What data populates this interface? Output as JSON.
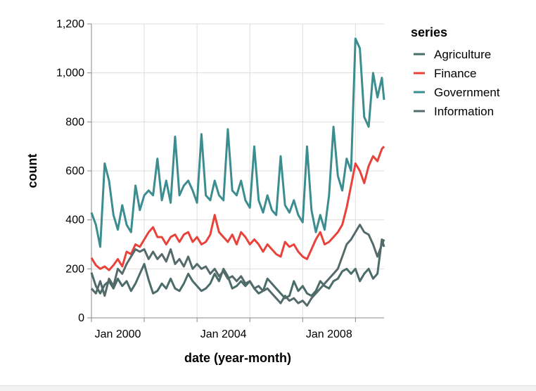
{
  "chart_data": {
    "type": "line",
    "title": "",
    "xlabel": "date (year-month)",
    "ylabel": "count",
    "xlim": [
      "1999-01",
      "2010-02"
    ],
    "ylim": [
      0,
      1200
    ],
    "x_ticks": [
      "Jan 2000",
      "Jan 2004",
      "Jan 2008"
    ],
    "y_ticks": [
      "0",
      "200",
      "400",
      "600",
      "800",
      "1,000",
      "1,200"
    ],
    "grid": true,
    "legend": {
      "title": "series",
      "position": "right"
    },
    "series": [
      {
        "name": "Agriculture",
        "color": "#4a6d6a",
        "points": [
          [
            "1999-01",
            185
          ],
          [
            "1999-03",
            130
          ],
          [
            "1999-05",
            100
          ],
          [
            "1999-07",
            135
          ],
          [
            "1999-09",
            150
          ],
          [
            "1999-11",
            120
          ],
          [
            "2000-01",
            160
          ],
          [
            "2000-03",
            130
          ],
          [
            "2000-05",
            150
          ],
          [
            "2000-07",
            110
          ],
          [
            "2000-09",
            140
          ],
          [
            "2000-11",
            180
          ],
          [
            "2001-01",
            220
          ],
          [
            "2001-03",
            155
          ],
          [
            "2001-05",
            100
          ],
          [
            "2001-07",
            110
          ],
          [
            "2001-09",
            140
          ],
          [
            "2001-11",
            120
          ],
          [
            "2002-01",
            160
          ],
          [
            "2002-03",
            120
          ],
          [
            "2002-05",
            110
          ],
          [
            "2002-07",
            140
          ],
          [
            "2002-09",
            180
          ],
          [
            "2002-11",
            150
          ],
          [
            "2003-01",
            130
          ],
          [
            "2003-03",
            110
          ],
          [
            "2003-05",
            120
          ],
          [
            "2003-07",
            140
          ],
          [
            "2003-09",
            180
          ],
          [
            "2003-11",
            150
          ],
          [
            "2004-01",
            200
          ],
          [
            "2004-03",
            170
          ],
          [
            "2004-05",
            120
          ],
          [
            "2004-07",
            130
          ],
          [
            "2004-09",
            150
          ],
          [
            "2004-11",
            130
          ],
          [
            "2005-01",
            150
          ],
          [
            "2005-03",
            120
          ],
          [
            "2005-05",
            100
          ],
          [
            "2005-07",
            110
          ],
          [
            "2005-09",
            160
          ],
          [
            "2005-11",
            140
          ],
          [
            "2006-01",
            120
          ],
          [
            "2006-03",
            100
          ],
          [
            "2006-05",
            80
          ],
          [
            "2006-07",
            90
          ],
          [
            "2006-09",
            150
          ],
          [
            "2006-11",
            110
          ],
          [
            "2007-01",
            130
          ],
          [
            "2007-03",
            100
          ],
          [
            "2007-05",
            90
          ],
          [
            "2007-07",
            110
          ],
          [
            "2007-09",
            150
          ],
          [
            "2007-11",
            130
          ],
          [
            "2008-01",
            120
          ],
          [
            "2008-03",
            150
          ],
          [
            "2008-05",
            160
          ],
          [
            "2008-07",
            190
          ],
          [
            "2008-09",
            200
          ],
          [
            "2008-11",
            180
          ],
          [
            "2009-01",
            200
          ],
          [
            "2009-03",
            150
          ],
          [
            "2009-05",
            180
          ],
          [
            "2009-07",
            200
          ],
          [
            "2009-09",
            160
          ],
          [
            "2009-11",
            180
          ],
          [
            "2010-01",
            320
          ],
          [
            "2010-02",
            290
          ]
        ]
      },
      {
        "name": "Finance",
        "color": "#e8423a",
        "points": [
          [
            "1999-01",
            245
          ],
          [
            "1999-03",
            215
          ],
          [
            "1999-05",
            200
          ],
          [
            "1999-07",
            210
          ],
          [
            "1999-09",
            195
          ],
          [
            "1999-11",
            215
          ],
          [
            "2000-01",
            240
          ],
          [
            "2000-03",
            210
          ],
          [
            "2000-05",
            270
          ],
          [
            "2000-07",
            260
          ],
          [
            "2000-09",
            300
          ],
          [
            "2000-11",
            290
          ],
          [
            "2001-01",
            320
          ],
          [
            "2001-03",
            350
          ],
          [
            "2001-05",
            370
          ],
          [
            "2001-07",
            330
          ],
          [
            "2001-09",
            330
          ],
          [
            "2001-11",
            300
          ],
          [
            "2002-01",
            330
          ],
          [
            "2002-03",
            340
          ],
          [
            "2002-05",
            310
          ],
          [
            "2002-07",
            340
          ],
          [
            "2002-09",
            350
          ],
          [
            "2002-11",
            310
          ],
          [
            "2003-01",
            330
          ],
          [
            "2003-03",
            300
          ],
          [
            "2003-05",
            310
          ],
          [
            "2003-07",
            340
          ],
          [
            "2003-09",
            420
          ],
          [
            "2003-11",
            350
          ],
          [
            "2004-01",
            330
          ],
          [
            "2004-03",
            310
          ],
          [
            "2004-05",
            340
          ],
          [
            "2004-07",
            300
          ],
          [
            "2004-09",
            350
          ],
          [
            "2004-11",
            330
          ],
          [
            "2005-01",
            300
          ],
          [
            "2005-03",
            320
          ],
          [
            "2005-05",
            300
          ],
          [
            "2005-07",
            270
          ],
          [
            "2005-09",
            300
          ],
          [
            "2005-11",
            280
          ],
          [
            "2006-01",
            260
          ],
          [
            "2006-03",
            250
          ],
          [
            "2006-05",
            310
          ],
          [
            "2006-07",
            290
          ],
          [
            "2006-09",
            300
          ],
          [
            "2006-11",
            270
          ],
          [
            "2007-01",
            250
          ],
          [
            "2007-03",
            240
          ],
          [
            "2007-05",
            280
          ],
          [
            "2007-07",
            320
          ],
          [
            "2007-09",
            350
          ],
          [
            "2007-11",
            300
          ],
          [
            "2008-01",
            310
          ],
          [
            "2008-03",
            330
          ],
          [
            "2008-05",
            350
          ],
          [
            "2008-07",
            380
          ],
          [
            "2008-09",
            450
          ],
          [
            "2008-11",
            540
          ],
          [
            "2009-01",
            630
          ],
          [
            "2009-03",
            600
          ],
          [
            "2009-05",
            550
          ],
          [
            "2009-07",
            620
          ],
          [
            "2009-09",
            660
          ],
          [
            "2009-11",
            640
          ],
          [
            "2010-01",
            690
          ],
          [
            "2010-02",
            700
          ]
        ]
      },
      {
        "name": "Government",
        "color": "#3c8d8f",
        "points": [
          [
            "1999-01",
            430
          ],
          [
            "1999-03",
            380
          ],
          [
            "1999-05",
            290
          ],
          [
            "1999-07",
            630
          ],
          [
            "1999-09",
            560
          ],
          [
            "1999-11",
            420
          ],
          [
            "2000-01",
            360
          ],
          [
            "2000-03",
            460
          ],
          [
            "2000-05",
            380
          ],
          [
            "2000-07",
            350
          ],
          [
            "2000-09",
            540
          ],
          [
            "2000-11",
            440
          ],
          [
            "2001-01",
            500
          ],
          [
            "2001-03",
            520
          ],
          [
            "2001-05",
            500
          ],
          [
            "2001-07",
            650
          ],
          [
            "2001-09",
            480
          ],
          [
            "2001-11",
            560
          ],
          [
            "2002-01",
            470
          ],
          [
            "2002-03",
            740
          ],
          [
            "2002-05",
            500
          ],
          [
            "2002-07",
            540
          ],
          [
            "2002-09",
            560
          ],
          [
            "2002-11",
            520
          ],
          [
            "2003-01",
            470
          ],
          [
            "2003-03",
            750
          ],
          [
            "2003-05",
            500
          ],
          [
            "2003-07",
            480
          ],
          [
            "2003-09",
            560
          ],
          [
            "2003-11",
            500
          ],
          [
            "2004-01",
            480
          ],
          [
            "2004-03",
            770
          ],
          [
            "2004-05",
            520
          ],
          [
            "2004-07",
            500
          ],
          [
            "2004-09",
            560
          ],
          [
            "2004-11",
            480
          ],
          [
            "2005-01",
            450
          ],
          [
            "2005-03",
            700
          ],
          [
            "2005-05",
            480
          ],
          [
            "2005-07",
            430
          ],
          [
            "2005-09",
            500
          ],
          [
            "2005-11",
            440
          ],
          [
            "2006-01",
            420
          ],
          [
            "2006-03",
            660
          ],
          [
            "2006-05",
            460
          ],
          [
            "2006-07",
            430
          ],
          [
            "2006-09",
            480
          ],
          [
            "2006-11",
            420
          ],
          [
            "2007-01",
            390
          ],
          [
            "2007-03",
            700
          ],
          [
            "2007-05",
            440
          ],
          [
            "2007-07",
            350
          ],
          [
            "2007-09",
            420
          ],
          [
            "2007-11",
            360
          ],
          [
            "2008-01",
            500
          ],
          [
            "2008-03",
            780
          ],
          [
            "2008-05",
            580
          ],
          [
            "2008-07",
            520
          ],
          [
            "2008-09",
            650
          ],
          [
            "2008-11",
            600
          ],
          [
            "2009-01",
            1140
          ],
          [
            "2009-03",
            1100
          ],
          [
            "2009-05",
            820
          ],
          [
            "2009-07",
            780
          ],
          [
            "2009-09",
            1000
          ],
          [
            "2009-11",
            900
          ],
          [
            "2010-01",
            980
          ],
          [
            "2010-02",
            890
          ]
        ]
      },
      {
        "name": "Information",
        "color": "#556a6a",
        "points": [
          [
            "1999-01",
            120
          ],
          [
            "1999-03",
            100
          ],
          [
            "1999-05",
            150
          ],
          [
            "1999-07",
            90
          ],
          [
            "1999-09",
            160
          ],
          [
            "1999-11",
            130
          ],
          [
            "2000-01",
            200
          ],
          [
            "2000-03",
            180
          ],
          [
            "2000-05",
            220
          ],
          [
            "2000-07",
            250
          ],
          [
            "2000-09",
            280
          ],
          [
            "2000-11",
            270
          ],
          [
            "2001-01",
            280
          ],
          [
            "2001-03",
            240
          ],
          [
            "2001-05",
            270
          ],
          [
            "2001-07",
            240
          ],
          [
            "2001-09",
            260
          ],
          [
            "2001-11",
            230
          ],
          [
            "2002-01",
            280
          ],
          [
            "2002-03",
            220
          ],
          [
            "2002-05",
            240
          ],
          [
            "2002-07",
            210
          ],
          [
            "2002-09",
            250
          ],
          [
            "2002-11",
            200
          ],
          [
            "2003-01",
            220
          ],
          [
            "2003-03",
            200
          ],
          [
            "2003-05",
            210
          ],
          [
            "2003-07",
            180
          ],
          [
            "2003-09",
            200
          ],
          [
            "2003-11",
            170
          ],
          [
            "2004-01",
            190
          ],
          [
            "2004-03",
            160
          ],
          [
            "2004-05",
            170
          ],
          [
            "2004-07",
            150
          ],
          [
            "2004-09",
            170
          ],
          [
            "2004-11",
            140
          ],
          [
            "2005-01",
            150
          ],
          [
            "2005-03",
            120
          ],
          [
            "2005-05",
            130
          ],
          [
            "2005-07",
            110
          ],
          [
            "2005-09",
            120
          ],
          [
            "2005-11",
            100
          ],
          [
            "2006-01",
            80
          ],
          [
            "2006-03",
            60
          ],
          [
            "2006-05",
            90
          ],
          [
            "2006-07",
            70
          ],
          [
            "2006-09",
            80
          ],
          [
            "2006-11",
            60
          ],
          [
            "2007-01",
            70
          ],
          [
            "2007-03",
            50
          ],
          [
            "2007-05",
            80
          ],
          [
            "2007-07",
            100
          ],
          [
            "2007-09",
            120
          ],
          [
            "2007-11",
            140
          ],
          [
            "2008-01",
            160
          ],
          [
            "2008-03",
            180
          ],
          [
            "2008-05",
            200
          ],
          [
            "2008-07",
            250
          ],
          [
            "2008-09",
            300
          ],
          [
            "2008-11",
            320
          ],
          [
            "2009-01",
            350
          ],
          [
            "2009-03",
            380
          ],
          [
            "2009-05",
            350
          ],
          [
            "2009-07",
            340
          ],
          [
            "2009-09",
            300
          ],
          [
            "2009-11",
            250
          ],
          [
            "2010-01",
            300
          ],
          [
            "2010-02",
            320
          ]
        ]
      }
    ]
  }
}
